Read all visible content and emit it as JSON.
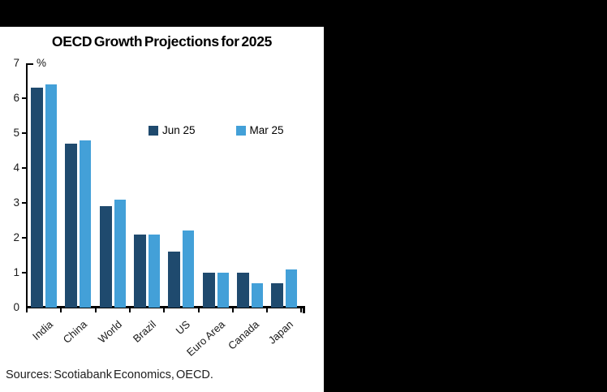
{
  "panel": {
    "title": "OECD Growth Projections for 2025",
    "y_axis_unit": "%",
    "sources": "Sources: Scotiabank Economics, OECD."
  },
  "colors": {
    "background": "#000000",
    "panel": "#ffffff",
    "axis": "#000000",
    "series_dark": "#1F4A6E",
    "series_light": "#43A0D8"
  },
  "chart_data": {
    "type": "bar",
    "title": "OECD Growth Projections for 2025",
    "xlabel": "",
    "ylabel": "%",
    "ylim": [
      0,
      7
    ],
    "yticks": [
      0,
      1,
      2,
      3,
      4,
      5,
      6,
      7
    ],
    "grid": false,
    "legend_position": "upper center",
    "categories": [
      "India",
      "China",
      "World",
      "Brazil",
      "US",
      "Euro Area",
      "Canada",
      "Japan"
    ],
    "series": [
      {
        "name": "Jun 25",
        "color": "#1F4A6E",
        "values": [
          6.3,
          4.7,
          2.9,
          2.1,
          1.6,
          1.0,
          1.0,
          0.7
        ]
      },
      {
        "name": "Mar 25",
        "color": "#43A0D8",
        "values": [
          6.4,
          4.8,
          3.1,
          2.1,
          2.2,
          1.0,
          0.7,
          1.1
        ]
      }
    ],
    "source_note": "Sources: Scotiabank Economics, OECD."
  }
}
